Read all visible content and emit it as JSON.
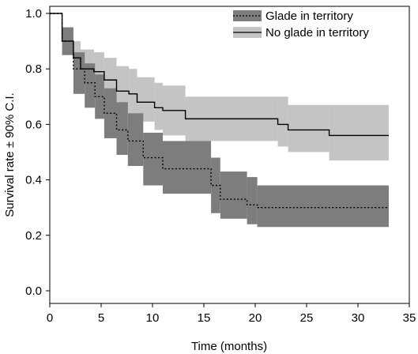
{
  "chart_data": {
    "type": "line",
    "title": "",
    "xlabel": "Time (months)",
    "ylabel": "Survival rate ± 90% C.I.",
    "xlim": [
      0,
      35
    ],
    "ylim": [
      0,
      1
    ],
    "x_ticks": [
      "0",
      "5",
      "10",
      "15",
      "20",
      "25",
      "30",
      "35"
    ],
    "y_ticks": [
      "0.0",
      "0.2",
      "0.4",
      "0.6",
      "0.8",
      "1.0"
    ],
    "grid": false,
    "legend_position": "top-right",
    "series": [
      {
        "name": "No glade in territory",
        "line_style": "solid",
        "line_color": "#000000",
        "band_color": "#c4c4c4",
        "band": "90% C.I.",
        "steps": [
          {
            "x": 0,
            "y": 1.0,
            "lower": 1.0,
            "upper": 1.0
          },
          {
            "x": 1.2,
            "y": 0.9,
            "lower": 0.85,
            "upper": 0.95
          },
          {
            "x": 2.3,
            "y": 0.84,
            "lower": 0.78,
            "upper": 0.9
          },
          {
            "x": 3.0,
            "y": 0.8,
            "lower": 0.74,
            "upper": 0.87
          },
          {
            "x": 4.3,
            "y": 0.79,
            "lower": 0.72,
            "upper": 0.86
          },
          {
            "x": 5.3,
            "y": 0.76,
            "lower": 0.69,
            "upper": 0.84
          },
          {
            "x": 6.5,
            "y": 0.72,
            "lower": 0.64,
            "upper": 0.81
          },
          {
            "x": 7.7,
            "y": 0.71,
            "lower": 0.63,
            "upper": 0.8
          },
          {
            "x": 8.5,
            "y": 0.68,
            "lower": 0.61,
            "upper": 0.77
          },
          {
            "x": 10.2,
            "y": 0.66,
            "lower": 0.58,
            "upper": 0.75
          },
          {
            "x": 11.0,
            "y": 0.65,
            "lower": 0.56,
            "upper": 0.74
          },
          {
            "x": 13.2,
            "y": 0.62,
            "lower": 0.54,
            "upper": 0.7
          },
          {
            "x": 22.2,
            "y": 0.6,
            "lower": 0.52,
            "upper": 0.7
          },
          {
            "x": 23.2,
            "y": 0.58,
            "lower": 0.5,
            "upper": 0.67
          },
          {
            "x": 27.2,
            "y": 0.56,
            "lower": 0.47,
            "upper": 0.67
          },
          {
            "x": 33.0,
            "y": 0.56,
            "lower": 0.47,
            "upper": 0.67
          }
        ]
      },
      {
        "name": "Glade in territory",
        "line_style": "dotted",
        "line_color": "#000000",
        "band_color": "#7d7d7d",
        "band": "90% C.I.",
        "steps": [
          {
            "x": 0,
            "y": 1.0,
            "lower": 1.0,
            "upper": 1.0
          },
          {
            "x": 1.2,
            "y": 0.9,
            "lower": 0.85,
            "upper": 0.95
          },
          {
            "x": 2.3,
            "y": 0.8,
            "lower": 0.71,
            "upper": 0.86
          },
          {
            "x": 3.4,
            "y": 0.75,
            "lower": 0.66,
            "upper": 0.82
          },
          {
            "x": 4.4,
            "y": 0.7,
            "lower": 0.62,
            "upper": 0.78
          },
          {
            "x": 5.3,
            "y": 0.64,
            "lower": 0.55,
            "upper": 0.73
          },
          {
            "x": 6.5,
            "y": 0.58,
            "lower": 0.49,
            "upper": 0.68
          },
          {
            "x": 7.6,
            "y": 0.54,
            "lower": 0.45,
            "upper": 0.64
          },
          {
            "x": 9.1,
            "y": 0.48,
            "lower": 0.38,
            "upper": 0.57
          },
          {
            "x": 11.0,
            "y": 0.44,
            "lower": 0.35,
            "upper": 0.54
          },
          {
            "x": 15.7,
            "y": 0.38,
            "lower": 0.28,
            "upper": 0.48
          },
          {
            "x": 16.6,
            "y": 0.33,
            "lower": 0.26,
            "upper": 0.43
          },
          {
            "x": 19.2,
            "y": 0.31,
            "lower": 0.24,
            "upper": 0.41
          },
          {
            "x": 20.2,
            "y": 0.3,
            "lower": 0.23,
            "upper": 0.38
          },
          {
            "x": 33.0,
            "y": 0.3,
            "lower": 0.23,
            "upper": 0.38
          }
        ]
      }
    ]
  }
}
